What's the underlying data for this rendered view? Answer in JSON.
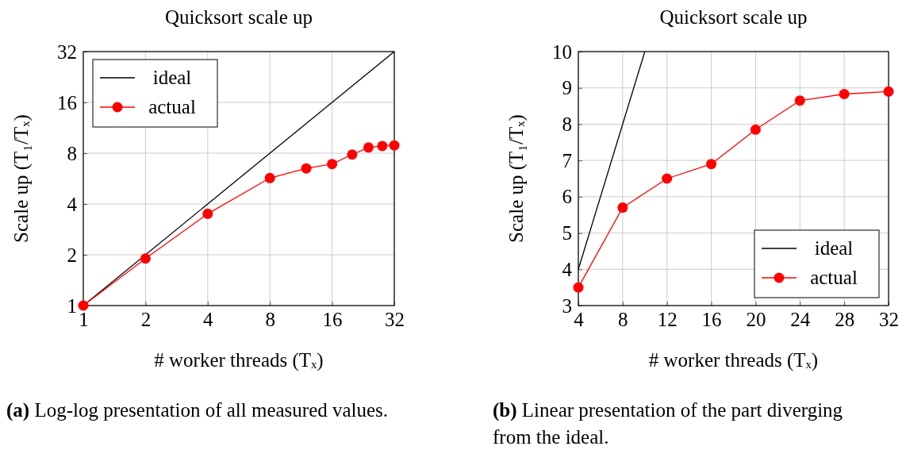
{
  "chart_data": [
    {
      "type": "line",
      "title": "Quicksort scale up",
      "xlabel": "# worker threads (Tₓ)",
      "ylabel": "Scale up (T₁/Tₓ)",
      "log": "xy",
      "xlim": [
        1,
        32
      ],
      "ylim": [
        1,
        32
      ],
      "xticks": [
        1,
        2,
        4,
        8,
        16,
        32
      ],
      "yticks": [
        1,
        2,
        4,
        8,
        16,
        32
      ],
      "grid": true,
      "legend": "top left",
      "marker": "circle",
      "series": [
        {
          "name": "ideal",
          "color": "#000000",
          "marker": "none",
          "x": [
            1,
            32
          ],
          "values": [
            1,
            32
          ]
        },
        {
          "name": "actual",
          "color": "#ff0000",
          "x": [
            1,
            2,
            4,
            8,
            12,
            16,
            20,
            24,
            28,
            32
          ],
          "values": [
            1,
            1.9,
            3.5,
            5.7,
            6.5,
            6.9,
            7.85,
            8.65,
            8.83,
            8.9
          ]
        }
      ],
      "annotations": [
        "(a) Log-log presentation of all measured values."
      ]
    },
    {
      "type": "line",
      "title": "Quicksort scale up",
      "xlabel": "# worker threads (Tₓ)",
      "ylabel": "Scale up (T₁/Tₓ)",
      "xlim": [
        4,
        32
      ],
      "ylim": [
        3,
        10
      ],
      "xticks": [
        4,
        8,
        12,
        16,
        20,
        24,
        28,
        32
      ],
      "yticks": [
        3,
        4,
        5,
        6,
        7,
        8,
        9,
        10
      ],
      "grid": true,
      "legend": "bottom right",
      "marker": "circle",
      "series": [
        {
          "name": "ideal",
          "color": "#000000",
          "marker": "none",
          "x": [
            4,
            10
          ],
          "values": [
            4,
            10
          ]
        },
        {
          "name": "actual",
          "color": "#ff0000",
          "x": [
            4,
            8,
            12,
            16,
            20,
            24,
            28,
            32
          ],
          "values": [
            3.5,
            5.7,
            6.5,
            6.9,
            7.85,
            8.65,
            8.83,
            8.9
          ]
        }
      ],
      "annotations": [
        "(b) Linear presentation of the part diverging from the ideal."
      ]
    }
  ]
}
